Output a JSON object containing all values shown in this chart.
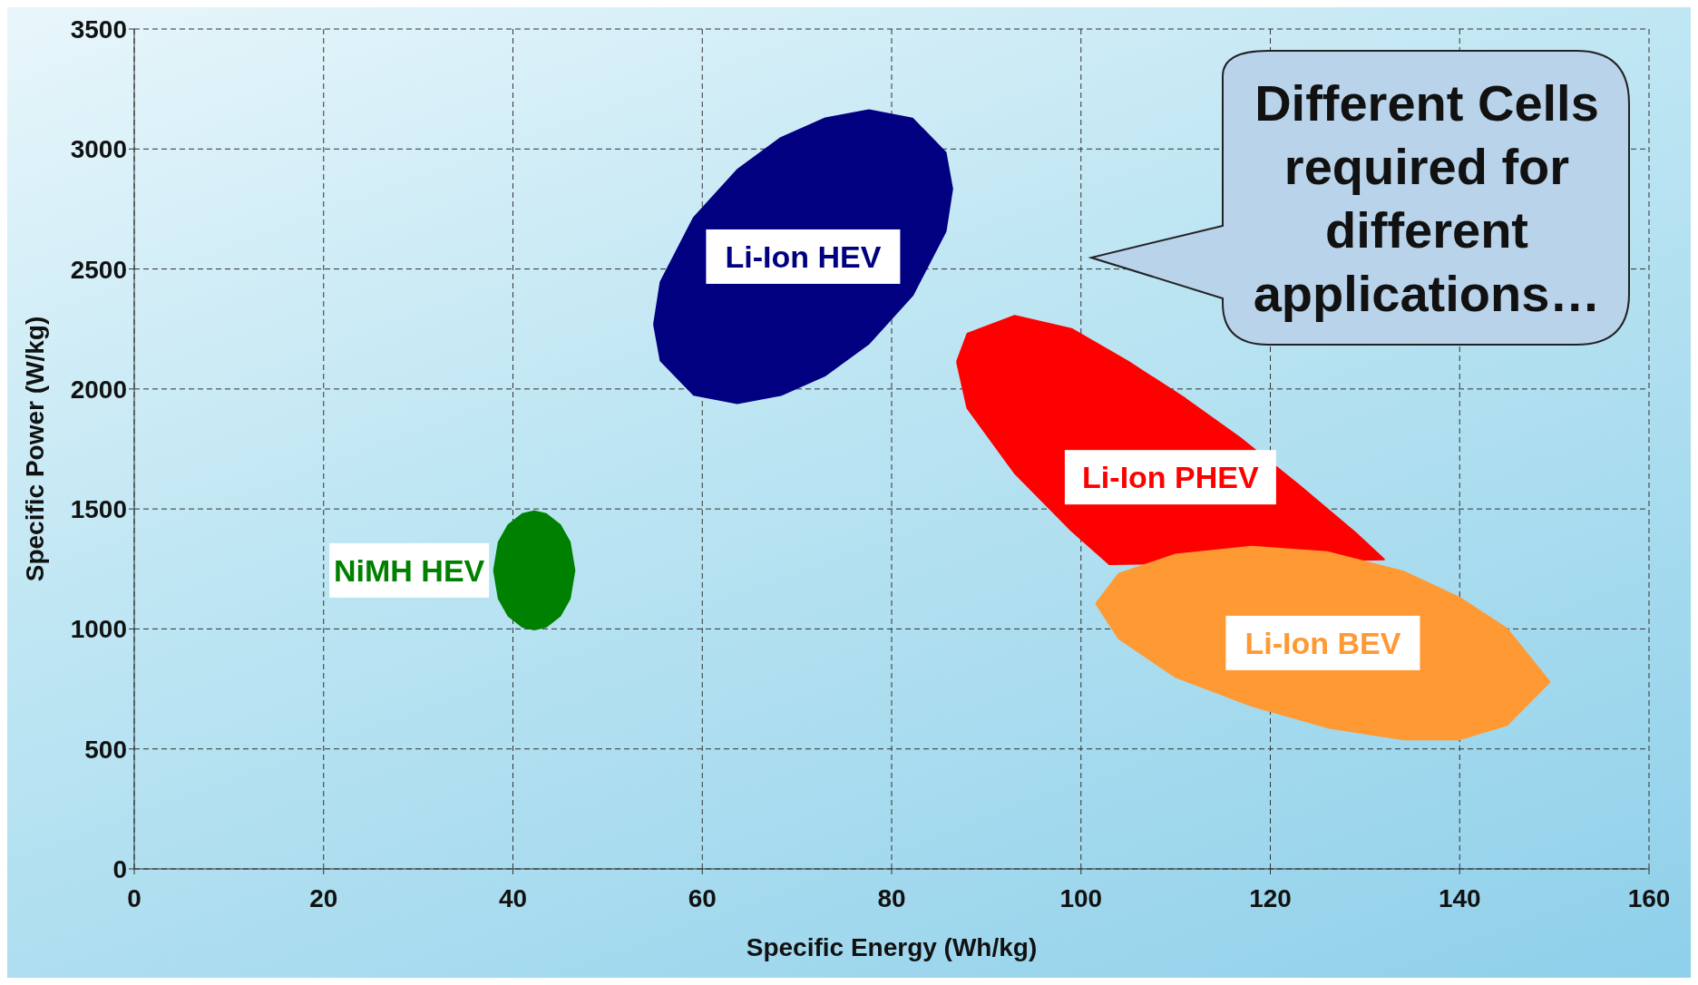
{
  "chart_data": {
    "type": "area",
    "xlabel": "Specific Energy (Wh/kg)",
    "ylabel": "Specific Power (W/kg)",
    "xlim": [
      0,
      160
    ],
    "xticks": [
      0,
      20,
      40,
      60,
      80,
      100,
      120,
      140,
      160
    ],
    "ylim": [
      0,
      3500
    ],
    "yticks": [
      0,
      500,
      1000,
      1500,
      2000,
      2500,
      3000,
      3500
    ],
    "grid": true,
    "annotations": [
      "Different Cells required for different applications…"
    ],
    "series": [
      {
        "name": "Li-Ion HEV",
        "color": "#000080",
        "x": [
          54.9,
          55.6,
          59.1,
          63.7,
          68.3,
          73.0,
          77.6,
          82.2,
          85.7,
          86.4,
          85.7,
          82.2,
          77.6,
          73.0,
          68.3,
          63.7,
          59.1,
          55.6,
          54.9
        ],
        "values": [
          2269,
          2446,
          2713,
          2913,
          3046,
          3128,
          3162,
          3127,
          2985,
          2834,
          2657,
          2390,
          2190,
          2057,
          1975,
          1941,
          1976,
          2118,
          2269
        ]
      },
      {
        "name": "Li-Ion PHEV",
        "color": "#ff0000",
        "x": [
          86.9,
          88,
          93,
          99,
          105,
          111,
          117,
          123,
          129,
          132,
          103,
          99,
          93,
          88,
          86.9
        ],
        "values": [
          2113,
          2230,
          2305,
          2250,
          2113,
          1960,
          1790,
          1600,
          1400,
          1290,
          1270,
          1410,
          1650,
          1920,
          2113
        ]
      },
      {
        "name": "Li-Ion BEV",
        "color": "#ff9933",
        "x": [
          101.6,
          104,
          110,
          118,
          126,
          134,
          140,
          145,
          149.5,
          145,
          140,
          134,
          126,
          118,
          110,
          104,
          101.6
        ],
        "values": [
          1106,
          1230,
          1310,
          1343,
          1320,
          1240,
          1130,
          1000,
          779,
          600,
          540,
          540,
          590,
          680,
          800,
          960,
          1106
        ]
      },
      {
        "name": "NiMH HEV",
        "color": "#008000",
        "x": [
          38.0,
          38.5,
          39.5,
          41,
          42.25,
          43.5,
          45,
          46,
          46.5,
          46,
          45,
          43.5,
          42.25,
          41,
          39.5,
          38.5,
          38.0
        ],
        "values": [
          1244,
          1362,
          1432,
          1479,
          1490,
          1479,
          1432,
          1362,
          1244,
          1126,
          1056,
          1009,
          998,
          1009,
          1056,
          1126,
          1244
        ]
      }
    ]
  }
}
